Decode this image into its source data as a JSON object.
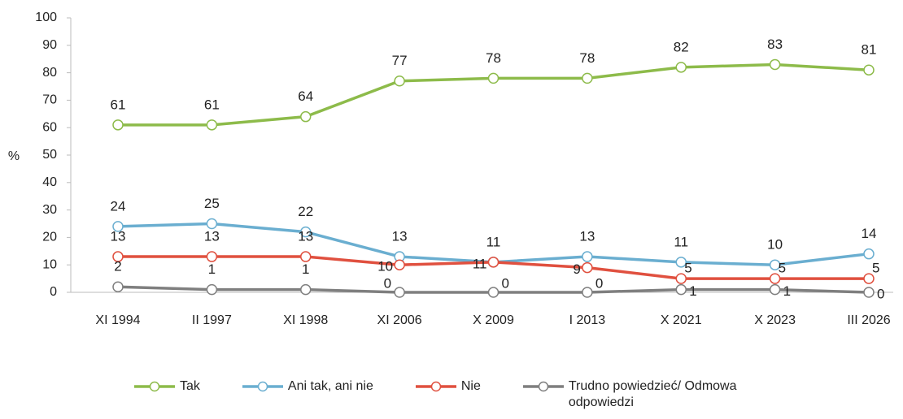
{
  "chart_data": {
    "type": "line",
    "y_label": "%",
    "categories": [
      "XI 1994",
      "II 1997",
      "XI 1998",
      "XI 2006",
      "X 2009",
      "I 2013",
      "X 2021",
      "X 2023",
      "III 2026"
    ],
    "series": [
      {
        "name": "Tak",
        "color": "#8dbb4a",
        "values": [
          61,
          61,
          64,
          77,
          78,
          78,
          82,
          83,
          81
        ]
      },
      {
        "name": "Ani tak, ani nie",
        "color": "#6aaed0",
        "values": [
          24,
          25,
          22,
          13,
          11,
          13,
          11,
          10,
          14
        ]
      },
      {
        "name": "Nie",
        "color": "#e0503f",
        "values": [
          13,
          13,
          13,
          10,
          11,
          9,
          5,
          5,
          5
        ]
      },
      {
        "name": "Trudno powiedzieć/ Odmowa odpowiedzi",
        "color": "#7f7f7f",
        "values": [
          2,
          1,
          1,
          0,
          0,
          0,
          1,
          1,
          0
        ]
      }
    ],
    "ylim": [
      0,
      100
    ],
    "yticks": [
      0,
      10,
      20,
      30,
      40,
      50,
      60,
      70,
      80,
      90,
      100
    ],
    "legend": "bottom"
  }
}
